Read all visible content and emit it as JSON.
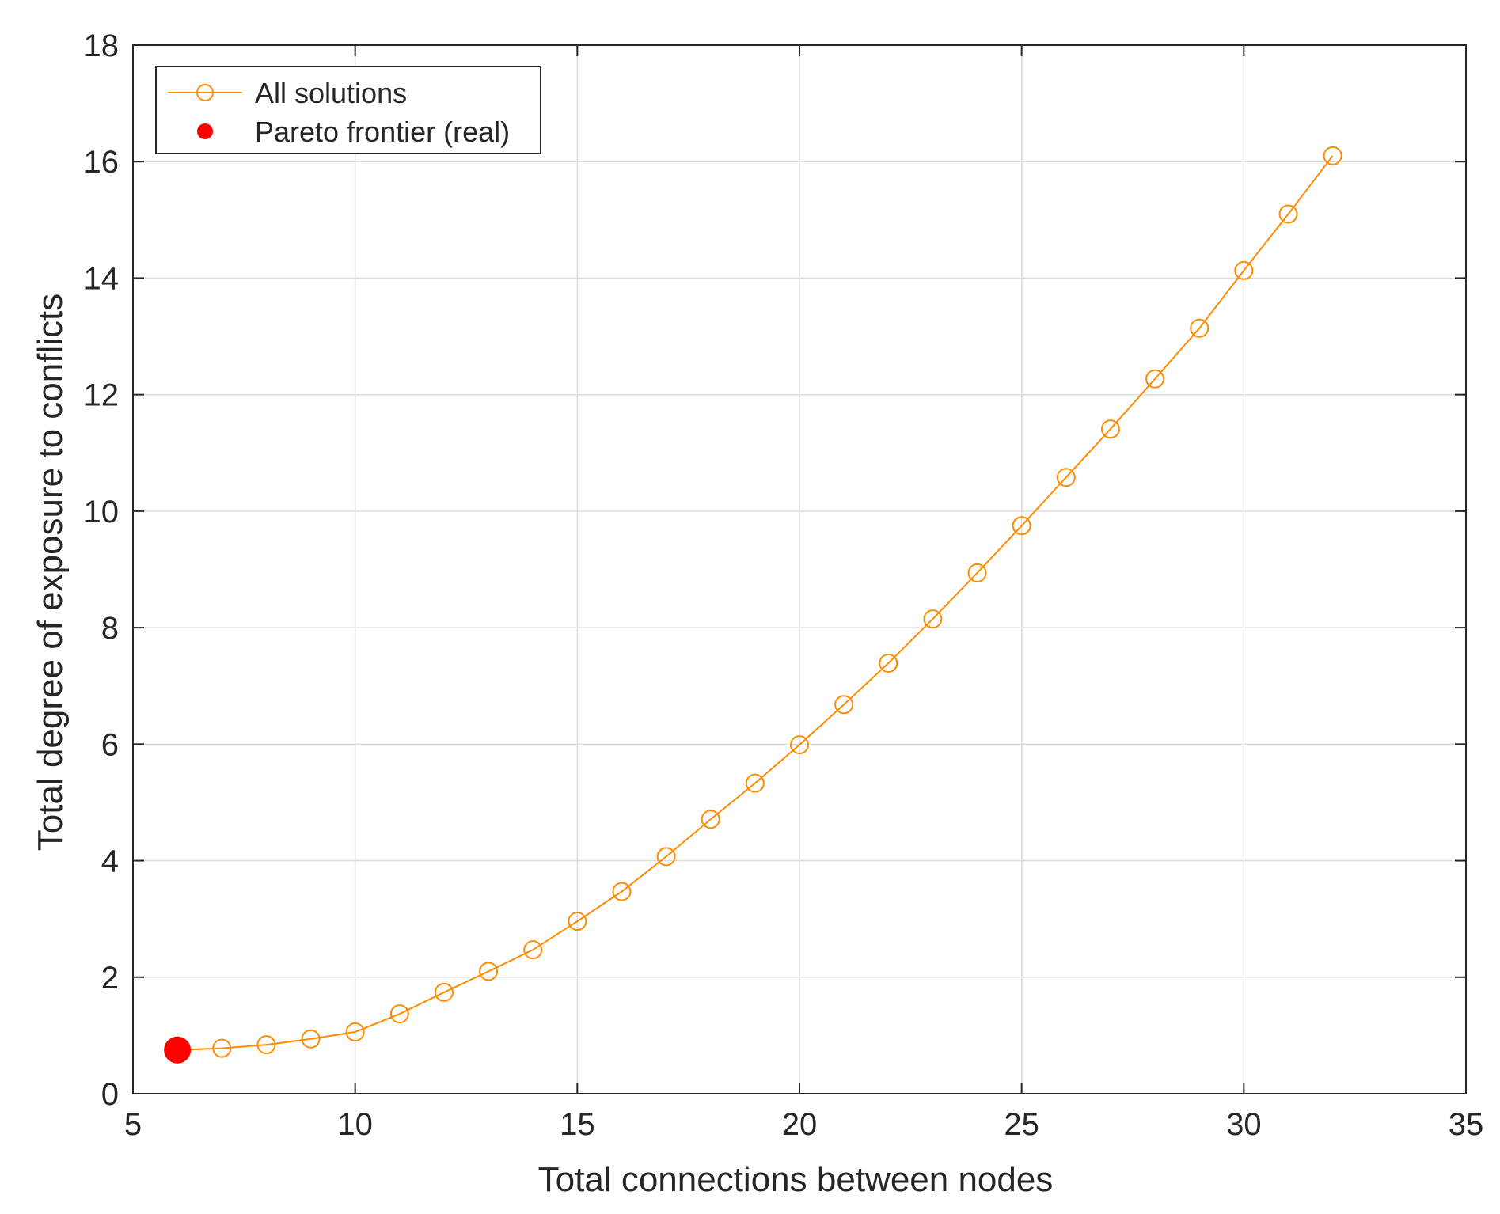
{
  "chart_data": {
    "type": "line",
    "title": "",
    "xlabel": "Total connections between nodes",
    "ylabel": "Total degree of exposure to conflicts",
    "xlim": [
      5,
      35
    ],
    "ylim": [
      0,
      18
    ],
    "xticks": [
      5,
      10,
      15,
      20,
      25,
      30,
      35
    ],
    "yticks": [
      0,
      2,
      4,
      6,
      8,
      10,
      12,
      14,
      16,
      18
    ],
    "grid": true,
    "legend_position": "top-left",
    "series": [
      {
        "name": "All solutions",
        "color": "#ff8c00",
        "marker": "open-circle",
        "x": [
          6,
          7,
          8,
          9,
          10,
          11,
          12,
          13,
          14,
          15,
          16,
          17,
          18,
          19,
          20,
          21,
          22,
          23,
          24,
          25,
          26,
          27,
          28,
          29,
          30,
          31,
          32
        ],
        "y": [
          0.75,
          0.78,
          0.84,
          0.94,
          1.06,
          1.37,
          1.74,
          2.1,
          2.47,
          2.96,
          3.47,
          4.07,
          4.71,
          5.33,
          5.99,
          6.68,
          7.39,
          8.15,
          8.94,
          9.75,
          10.58,
          11.41,
          12.27,
          13.14,
          14.13,
          15.1,
          16.1
        ]
      },
      {
        "name": "Pareto frontier (real)",
        "color": "#ff0000",
        "marker": "filled-circle",
        "x": [
          6
        ],
        "y": [
          0.75
        ]
      }
    ]
  }
}
